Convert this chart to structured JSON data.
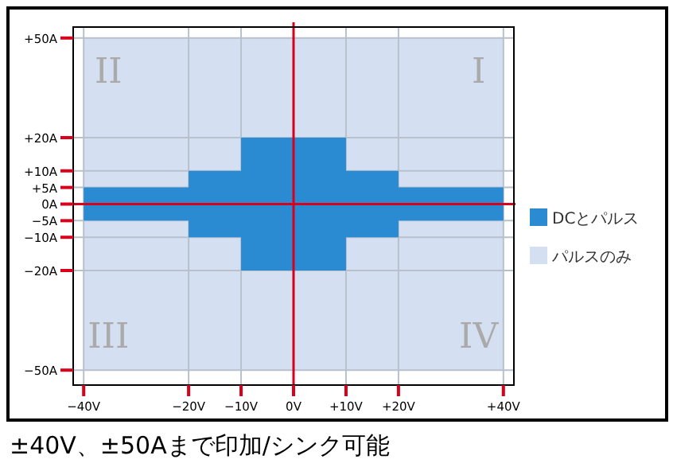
{
  "chart_data": {
    "type": "area",
    "xlim": [
      -42,
      42
    ],
    "ylim": [
      -54.5,
      53.3
    ],
    "xticks": [
      {
        "value": -40,
        "label": "−40V"
      },
      {
        "value": -20,
        "label": "−20V"
      },
      {
        "value": -10,
        "label": "−10V"
      },
      {
        "value": 0,
        "label": "0V"
      },
      {
        "value": 10,
        "label": "+10V"
      },
      {
        "value": 20,
        "label": "+20V"
      },
      {
        "value": 40,
        "label": "+40V"
      }
    ],
    "yticks": [
      {
        "value": 50,
        "label": "+50A"
      },
      {
        "value": 20,
        "label": "+20A"
      },
      {
        "value": 10,
        "label": "+10A"
      },
      {
        "value": 5,
        "label": "+5A"
      },
      {
        "value": 0,
        "label": "0A"
      },
      {
        "value": -5,
        "label": "−5A"
      },
      {
        "value": -10,
        "label": "−10A"
      },
      {
        "value": -20,
        "label": "−20A"
      },
      {
        "value": -50,
        "label": "−50A"
      }
    ],
    "series": [
      {
        "name": "パルスのみ",
        "color": "#d4e0f2",
        "x": [
          -40,
          40
        ],
        "values": [
          50,
          50
        ]
      },
      {
        "color": "#d4e0f2",
        "x": [
          -40,
          40
        ],
        "values": [
          -50,
          -50
        ]
      },
      {
        "name": "DCとパルス",
        "color": "#2a8ad2",
        "x": [
          -40,
          -20,
          -20,
          -10,
          -10,
          10,
          10,
          20,
          20,
          40
        ],
        "values": [
          5,
          5,
          10,
          10,
          20,
          20,
          10,
          10,
          5,
          5
        ]
      },
      {
        "color": "#2a8ad2",
        "x": [
          -40,
          -20,
          -20,
          -10,
          -10,
          10,
          10,
          20,
          20,
          40
        ],
        "values": [
          -5,
          -5,
          -10,
          -10,
          -20,
          -20,
          -10,
          -10,
          -5,
          -5
        ]
      }
    ],
    "annotations": [
      "II",
      "I",
      "III",
      "IV",
      "±40V、±50Aまで印加/シンク可能"
    ],
    "grid": true,
    "legend": "right"
  }
}
